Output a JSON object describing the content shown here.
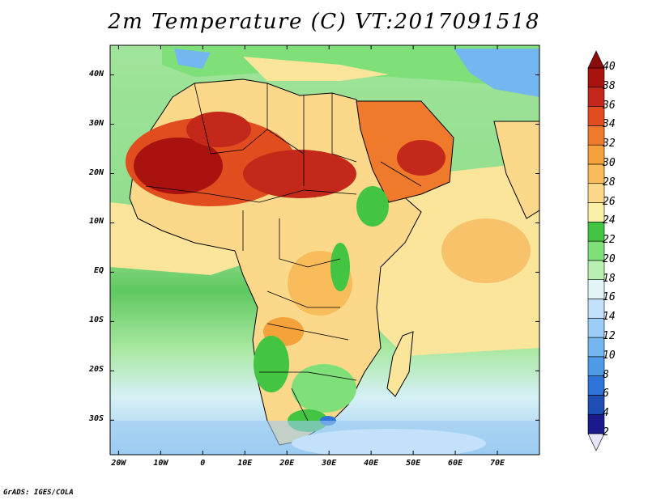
{
  "title": "2m Temperature (C)  VT:2017091518",
  "credit": "GrADS: IGES/COLA",
  "map": {
    "lon_range": [
      -22,
      80
    ],
    "lat_range": [
      -37,
      46
    ],
    "lat_ticks": [
      {
        "value": 40,
        "label": "40N"
      },
      {
        "value": 30,
        "label": "30N"
      },
      {
        "value": 20,
        "label": "20N"
      },
      {
        "value": 10,
        "label": "10N"
      },
      {
        "value": 0,
        "label": "EQ"
      },
      {
        "value": -10,
        "label": "10S"
      },
      {
        "value": -20,
        "label": "20S"
      },
      {
        "value": -30,
        "label": "30S"
      }
    ],
    "lon_ticks": [
      {
        "value": -20,
        "label": "20W"
      },
      {
        "value": -10,
        "label": "10W"
      },
      {
        "value": 0,
        "label": "0"
      },
      {
        "value": 10,
        "label": "10E"
      },
      {
        "value": 20,
        "label": "20E"
      },
      {
        "value": 30,
        "label": "30E"
      },
      {
        "value": 40,
        "label": "40E"
      },
      {
        "value": 50,
        "label": "50E"
      },
      {
        "value": 60,
        "label": "60E"
      },
      {
        "value": 70,
        "label": "70E"
      }
    ]
  },
  "colorbar": {
    "levels": [
      "2",
      "4",
      "6",
      "8",
      "10",
      "12",
      "14",
      "16",
      "18",
      "20",
      "22",
      "24",
      "26",
      "28",
      "30",
      "32",
      "34",
      "36",
      "38",
      "40"
    ],
    "colors": [
      "#e6e6fa",
      "#1a1a8c",
      "#1e4fb4",
      "#2f74d8",
      "#4f9be6",
      "#74b7f0",
      "#9ccdf7",
      "#c3e1fa",
      "#e4f5f8",
      "#b7f0b0",
      "#7fe07a",
      "#43c443",
      "#fbf0a8",
      "#fbd88a",
      "#f8bd5a",
      "#f5a23a",
      "#f07a2b",
      "#e14d1f",
      "#c4281a",
      "#a8120f",
      "#8a0b0b"
    ]
  }
}
